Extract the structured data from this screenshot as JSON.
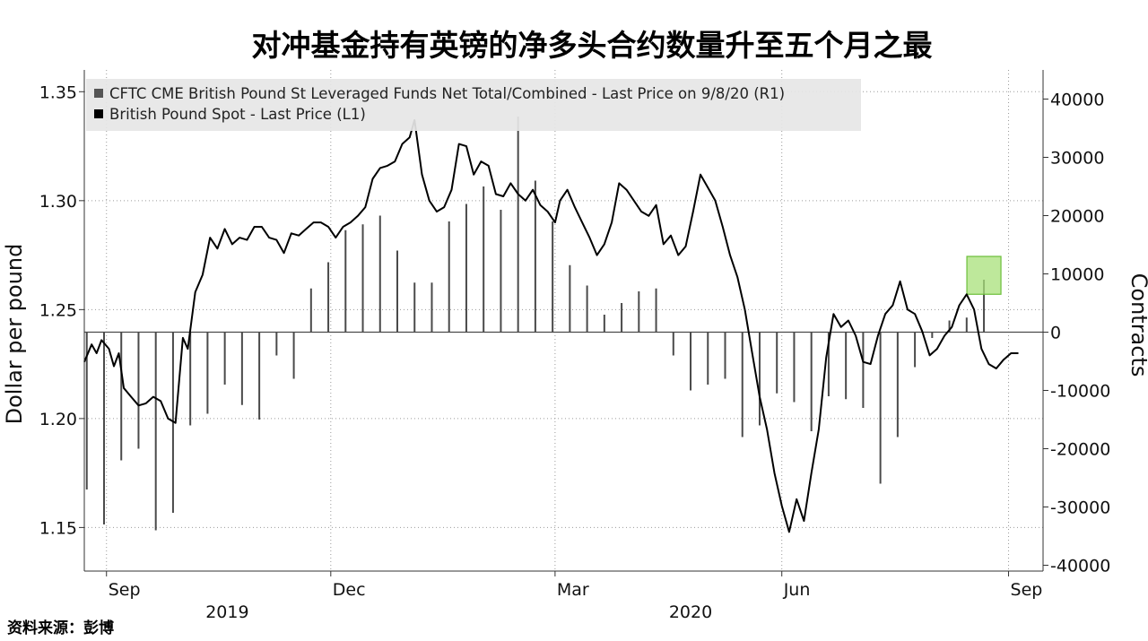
{
  "page_title": "对冲基金持有英镑的净多头合约数量升至五个月之最",
  "source": "资料来源：彭博",
  "chart_data": {
    "type": "line+bar",
    "title": "对冲基金持有英镑的净多头合约数量升至五个月之最",
    "legend": [
      {
        "label": "CFTC CME British Pound St Leveraged Funds Net Total/Combined - Last Price on 9/8/20 (R1)",
        "color": "#555555"
      },
      {
        "label": "British Pound Spot - Last Price (L1)",
        "color": "#000000"
      }
    ],
    "legend_position": "top-left",
    "grid": "dotted",
    "left_axis": {
      "label": "Dollar per pound",
      "range": [
        1.13,
        1.36
      ],
      "ticks": [
        "1.35",
        "1.30",
        "1.25",
        "1.20",
        "1.15"
      ],
      "tick_values": [
        1.35,
        1.3,
        1.25,
        1.2,
        1.15
      ]
    },
    "right_axis": {
      "label": "Contracts",
      "range": [
        -41000,
        45000
      ],
      "ticks": [
        "40000",
        "30000",
        "20000",
        "10000",
        "0",
        "-10000",
        "-20000",
        "-30000",
        "-40000"
      ],
      "tick_values": [
        40000,
        30000,
        20000,
        10000,
        0,
        -10000,
        -20000,
        -30000,
        -40000
      ]
    },
    "x_axis": {
      "range": [
        "2019-08-23",
        "2020-09-15"
      ],
      "month_ticks": [
        {
          "label": "Sep",
          "date": "2019-09-01"
        },
        {
          "label": "Dec",
          "date": "2019-12-01"
        },
        {
          "label": "Mar",
          "date": "2020-03-01"
        },
        {
          "label": "Jun",
          "date": "2020-06-01"
        },
        {
          "label": "Sep",
          "date": "2020-09-01"
        }
      ],
      "year_labels": [
        {
          "label": "2019",
          "date": "2019-10-20"
        },
        {
          "label": "2020",
          "date": "2020-04-25"
        }
      ]
    },
    "series": [
      {
        "name": "British Pound Spot - Last Price (L1)",
        "axis": "left",
        "kind": "line",
        "points": [
          [
            "2019-08-23",
            1.226
          ],
          [
            "2019-08-26",
            1.234
          ],
          [
            "2019-08-28",
            1.23
          ],
          [
            "2019-08-30",
            1.236
          ],
          [
            "2019-09-02",
            1.232
          ],
          [
            "2019-09-04",
            1.224
          ],
          [
            "2019-09-06",
            1.23
          ],
          [
            "2019-09-08",
            1.214
          ],
          [
            "2019-09-11",
            1.21
          ],
          [
            "2019-09-14",
            1.206
          ],
          [
            "2019-09-17",
            1.207
          ],
          [
            "2019-09-20",
            1.21
          ],
          [
            "2019-09-23",
            1.208
          ],
          [
            "2019-09-26",
            1.2
          ],
          [
            "2019-09-29",
            1.198
          ],
          [
            "2019-10-02",
            1.237
          ],
          [
            "2019-10-04",
            1.232
          ],
          [
            "2019-10-07",
            1.258
          ],
          [
            "2019-10-10",
            1.266
          ],
          [
            "2019-10-13",
            1.283
          ],
          [
            "2019-10-16",
            1.278
          ],
          [
            "2019-10-19",
            1.287
          ],
          [
            "2019-10-22",
            1.28
          ],
          [
            "2019-10-25",
            1.283
          ],
          [
            "2019-10-28",
            1.282
          ],
          [
            "2019-10-31",
            1.288
          ],
          [
            "2019-11-03",
            1.288
          ],
          [
            "2019-11-06",
            1.283
          ],
          [
            "2019-11-09",
            1.282
          ],
          [
            "2019-11-12",
            1.276
          ],
          [
            "2019-11-15",
            1.285
          ],
          [
            "2019-11-18",
            1.284
          ],
          [
            "2019-11-21",
            1.287
          ],
          [
            "2019-11-24",
            1.29
          ],
          [
            "2019-11-27",
            1.29
          ],
          [
            "2019-11-30",
            1.288
          ],
          [
            "2019-12-03",
            1.283
          ],
          [
            "2019-12-06",
            1.288
          ],
          [
            "2019-12-09",
            1.29
          ],
          [
            "2019-12-12",
            1.293
          ],
          [
            "2019-12-15",
            1.297
          ],
          [
            "2019-12-18",
            1.31
          ],
          [
            "2019-12-21",
            1.315
          ],
          [
            "2019-12-24",
            1.316
          ],
          [
            "2019-12-27",
            1.318
          ],
          [
            "2019-12-30",
            1.326
          ],
          [
            "2020-01-02",
            1.329
          ],
          [
            "2020-01-04",
            1.337
          ],
          [
            "2020-01-07",
            1.312
          ],
          [
            "2020-01-10",
            1.3
          ],
          [
            "2020-01-13",
            1.295
          ],
          [
            "2020-01-16",
            1.297
          ],
          [
            "2020-01-19",
            1.305
          ],
          [
            "2020-01-22",
            1.326
          ],
          [
            "2020-01-25",
            1.325
          ],
          [
            "2020-01-28",
            1.312
          ],
          [
            "2020-01-31",
            1.318
          ],
          [
            "2020-02-03",
            1.316
          ],
          [
            "2020-02-06",
            1.303
          ],
          [
            "2020-02-09",
            1.302
          ],
          [
            "2020-02-12",
            1.308
          ],
          [
            "2020-02-15",
            1.303
          ],
          [
            "2020-02-18",
            1.3
          ],
          [
            "2020-02-21",
            1.305
          ],
          [
            "2020-02-24",
            1.298
          ],
          [
            "2020-02-27",
            1.295
          ],
          [
            "2020-03-01",
            1.29
          ],
          [
            "2020-03-03",
            1.3
          ],
          [
            "2020-03-06",
            1.305
          ],
          [
            "2020-03-09",
            1.297
          ],
          [
            "2020-03-12",
            1.29
          ],
          [
            "2020-03-15",
            1.283
          ],
          [
            "2020-03-18",
            1.275
          ],
          [
            "2020-03-21",
            1.28
          ],
          [
            "2020-03-24",
            1.29
          ],
          [
            "2020-03-27",
            1.308
          ],
          [
            "2020-03-30",
            1.305
          ],
          [
            "2020-04-02",
            1.3
          ],
          [
            "2020-04-05",
            1.295
          ],
          [
            "2020-04-08",
            1.293
          ],
          [
            "2020-04-11",
            1.298
          ],
          [
            "2020-04-14",
            1.28
          ],
          [
            "2020-04-17",
            1.284
          ],
          [
            "2020-04-20",
            1.275
          ],
          [
            "2020-04-23",
            1.279
          ],
          [
            "2020-04-26",
            1.295
          ],
          [
            "2020-04-29",
            1.312
          ],
          [
            "2020-05-02",
            1.306
          ],
          [
            "2020-05-05",
            1.3
          ],
          [
            "2020-05-08",
            1.288
          ],
          [
            "2020-05-11",
            1.275
          ],
          [
            "2020-05-14",
            1.265
          ],
          [
            "2020-05-17",
            1.25
          ],
          [
            "2020-05-20",
            1.23
          ],
          [
            "2020-05-23",
            1.21
          ],
          [
            "2020-05-26",
            1.195
          ],
          [
            "2020-05-29",
            1.175
          ],
          [
            "2020-06-01",
            1.16
          ],
          [
            "2020-06-04",
            1.148
          ],
          [
            "2020-06-07",
            1.163
          ],
          [
            "2020-06-10",
            1.153
          ],
          [
            "2020-06-13",
            1.175
          ],
          [
            "2020-06-16",
            1.195
          ],
          [
            "2020-06-19",
            1.228
          ],
          [
            "2020-06-22",
            1.248
          ],
          [
            "2020-06-25",
            1.242
          ],
          [
            "2020-06-28",
            1.245
          ],
          [
            "2020-07-01",
            1.238
          ],
          [
            "2020-07-04",
            1.226
          ],
          [
            "2020-07-07",
            1.225
          ],
          [
            "2020-07-10",
            1.238
          ],
          [
            "2020-07-13",
            1.248
          ],
          [
            "2020-07-16",
            1.252
          ],
          [
            "2020-07-19",
            1.263
          ],
          [
            "2020-07-22",
            1.25
          ],
          [
            "2020-07-25",
            1.248
          ],
          [
            "2020-07-28",
            1.24
          ],
          [
            "2020-07-31",
            1.229
          ],
          [
            "2020-08-03",
            1.232
          ],
          [
            "2020-08-06",
            1.238
          ],
          [
            "2020-08-09",
            1.242
          ],
          [
            "2020-08-12",
            1.252
          ],
          [
            "2020-08-15",
            1.257
          ],
          [
            "2020-08-18",
            1.25
          ],
          [
            "2020-08-21",
            1.232
          ],
          [
            "2020-08-24",
            1.225
          ],
          [
            "2020-08-27",
            1.223
          ],
          [
            "2020-08-30",
            1.227
          ],
          [
            "2020-09-02",
            1.23
          ],
          [
            "2020-09-05",
            1.23
          ]
        ]
      },
      {
        "name": "CFTC CME British Pound St Leveraged Funds Net Total/Combined - Last Price on 9/8/20 (R1)",
        "axis": "right",
        "kind": "bar",
        "points": [
          [
            "2019-08-24",
            -27000
          ],
          [
            "2019-08-31",
            -33000
          ],
          [
            "2019-09-07",
            -22000
          ],
          [
            "2019-09-14",
            -20000
          ],
          [
            "2019-09-21",
            -34000
          ],
          [
            "2019-09-28",
            -31000
          ],
          [
            "2019-10-05",
            -16000
          ],
          [
            "2019-10-12",
            -14000
          ],
          [
            "2019-10-19",
            -9000
          ],
          [
            "2019-10-26",
            -12500
          ],
          [
            "2019-11-02",
            -15000
          ],
          [
            "2019-11-09",
            -4000
          ],
          [
            "2019-11-16",
            -8000
          ],
          [
            "2019-11-23",
            7500
          ],
          [
            "2019-11-30",
            12000
          ],
          [
            "2019-12-07",
            17500
          ],
          [
            "2019-12-14",
            18500
          ],
          [
            "2019-12-21",
            20000
          ],
          [
            "2019-12-28",
            14000
          ],
          [
            "2020-01-04",
            8500
          ],
          [
            "2020-01-11",
            8500
          ],
          [
            "2020-01-18",
            19000
          ],
          [
            "2020-01-25",
            22000
          ],
          [
            "2020-02-01",
            25000
          ],
          [
            "2020-02-08",
            21000
          ],
          [
            "2020-02-15",
            37000
          ],
          [
            "2020-02-22",
            26000
          ],
          [
            "2020-02-29",
            19000
          ],
          [
            "2020-03-07",
            11500
          ],
          [
            "2020-03-14",
            8000
          ],
          [
            "2020-03-21",
            3000
          ],
          [
            "2020-03-28",
            5000
          ],
          [
            "2020-04-04",
            7000
          ],
          [
            "2020-04-11",
            7500
          ],
          [
            "2020-04-18",
            -4000
          ],
          [
            "2020-04-25",
            -10000
          ],
          [
            "2020-05-02",
            -9000
          ],
          [
            "2020-05-09",
            -8000
          ],
          [
            "2020-05-16",
            -18000
          ],
          [
            "2020-05-23",
            -16000
          ],
          [
            "2020-05-30",
            -10500
          ],
          [
            "2020-06-06",
            -12000
          ],
          [
            "2020-06-13",
            -17000
          ],
          [
            "2020-06-20",
            -11000
          ],
          [
            "2020-06-27",
            -11500
          ],
          [
            "2020-07-04",
            -13000
          ],
          [
            "2020-07-11",
            -26000
          ],
          [
            "2020-07-18",
            -18000
          ],
          [
            "2020-07-25",
            -6000
          ],
          [
            "2020-08-01",
            -1000
          ],
          [
            "2020-08-08",
            2000
          ],
          [
            "2020-08-15",
            2500
          ],
          [
            "2020-08-22",
            9000
          ]
        ]
      }
    ]
  }
}
